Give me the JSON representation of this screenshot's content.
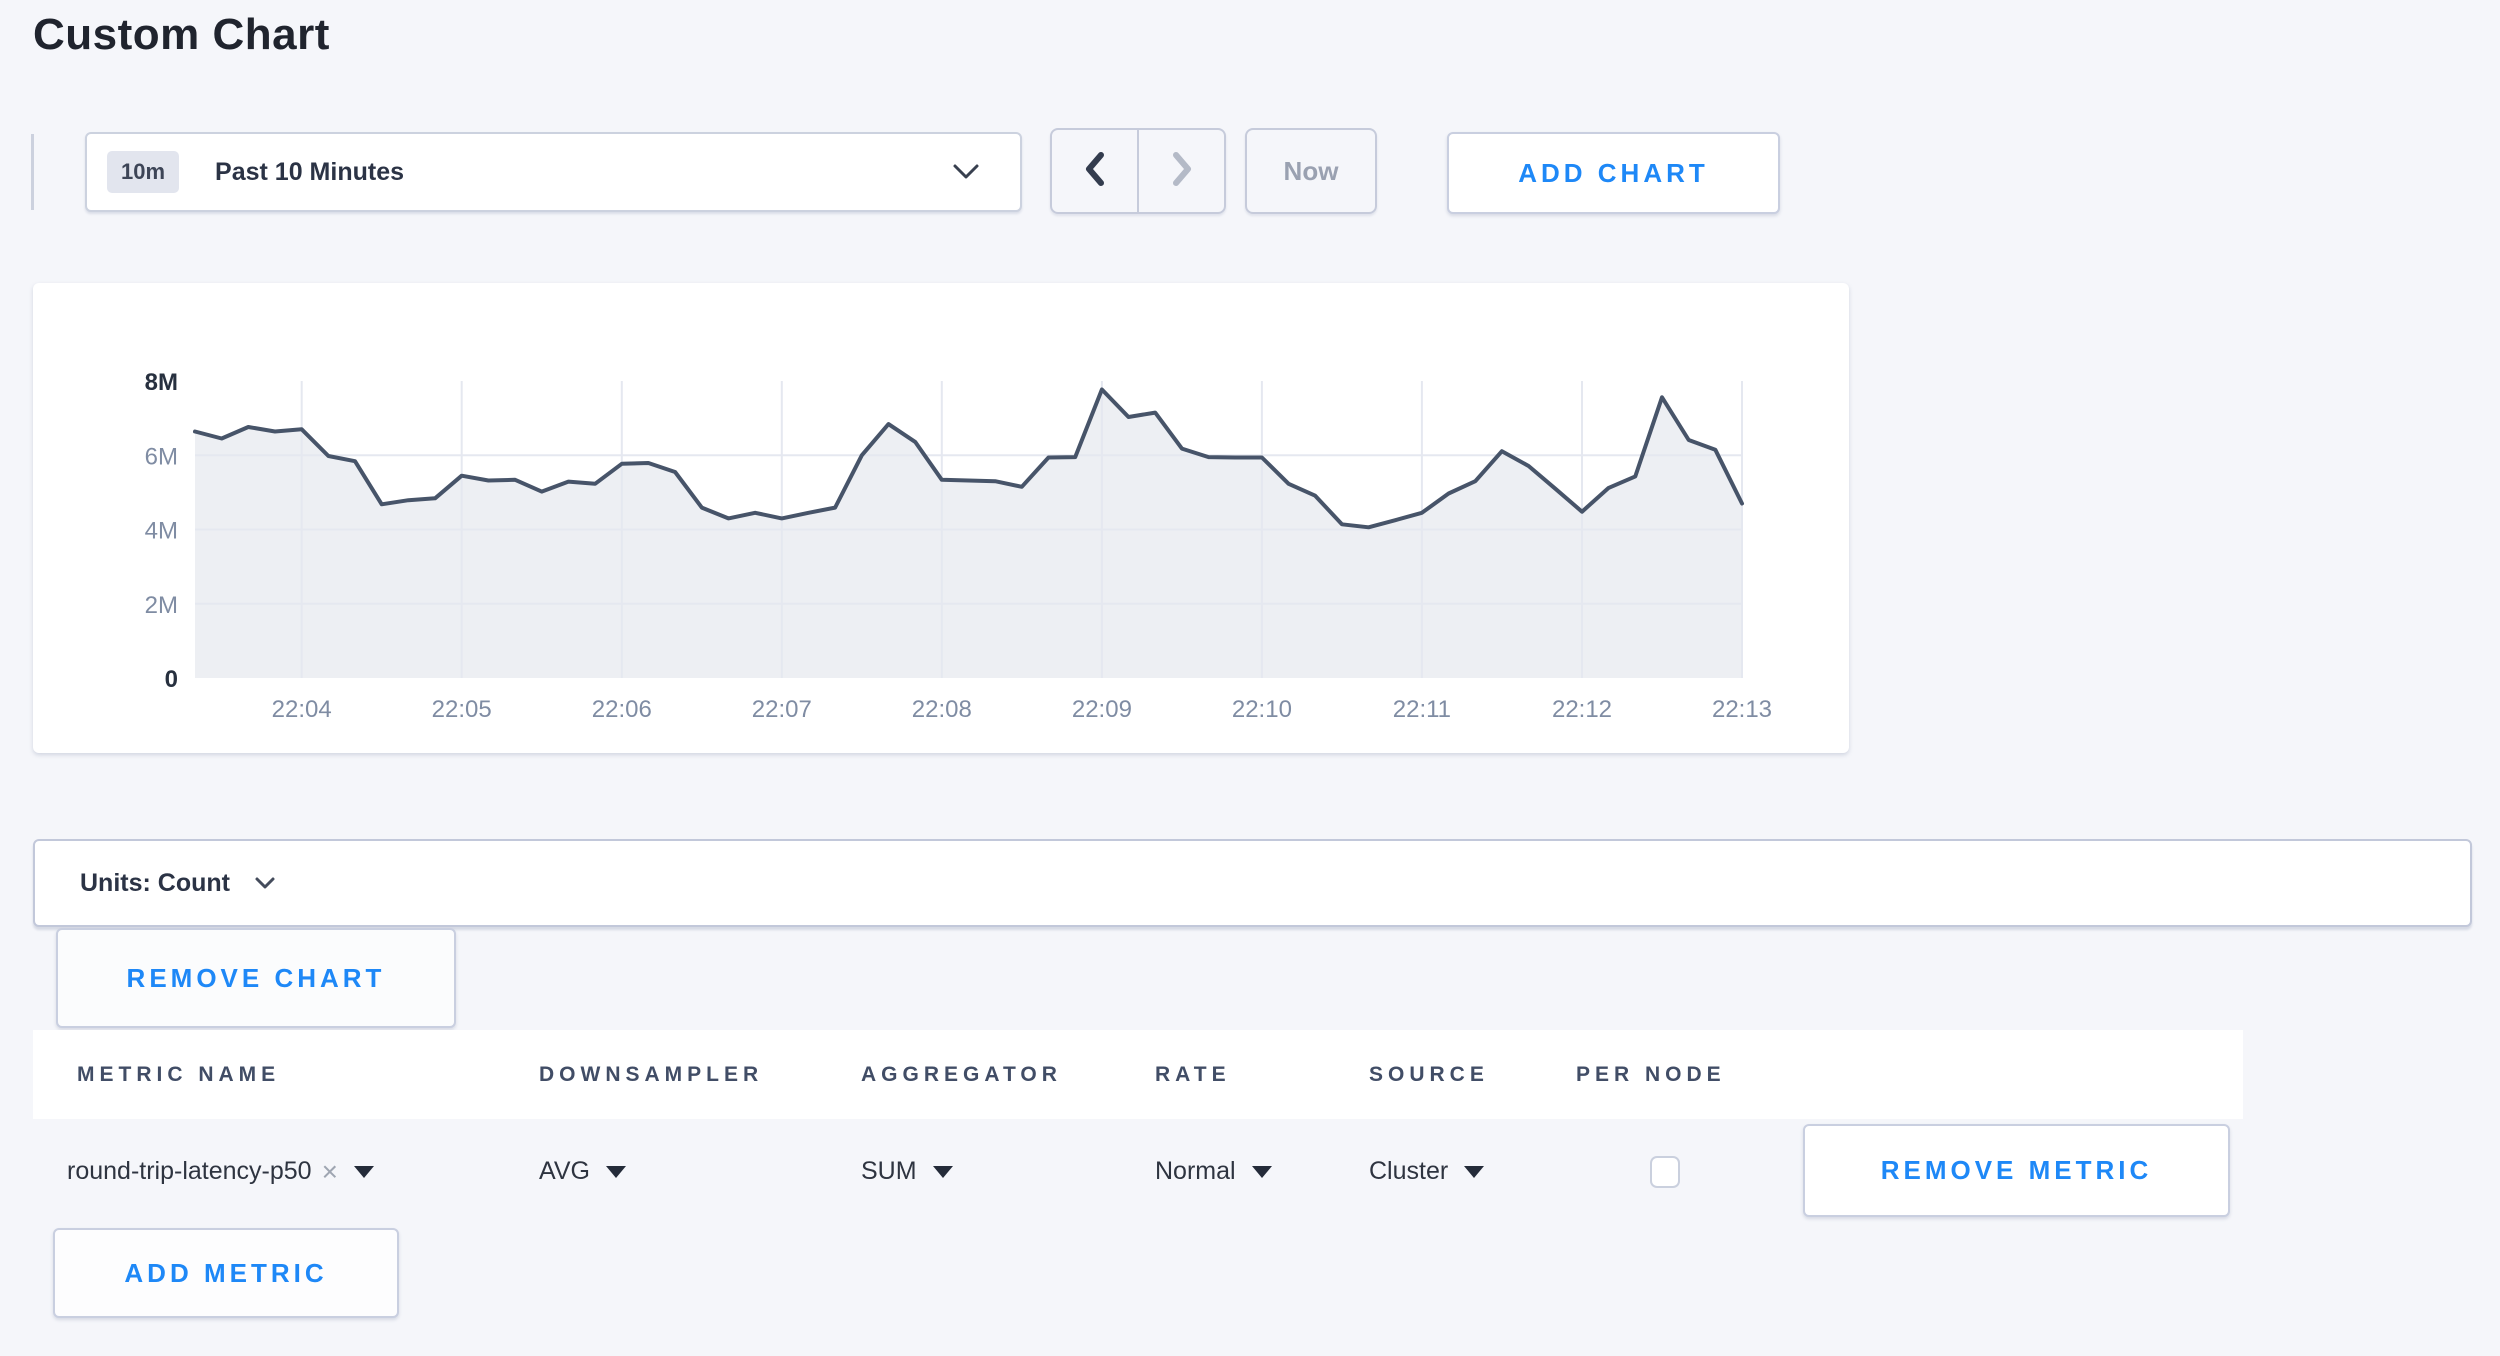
{
  "page": {
    "title": "Custom Chart"
  },
  "toolbar": {
    "timescale": {
      "badge": "10m",
      "label": "Past 10 Minutes"
    },
    "now_label": "Now",
    "add_chart_label": "ADD CHART"
  },
  "units_bar": {
    "label": "Units: Count"
  },
  "buttons": {
    "remove_chart_label": "REMOVE CHART",
    "remove_metric_label": "REMOVE METRIC",
    "add_metric_label": "ADD METRIC"
  },
  "icons": {
    "clear": "×"
  },
  "metrics_table": {
    "headers": [
      "METRIC NAME",
      "DOWNSAMPLER",
      "AGGREGATOR",
      "RATE",
      "SOURCE",
      "PER NODE"
    ],
    "rows": [
      {
        "metric_name": "round-trip-latency-p50",
        "downsampler": "AVG",
        "aggregator": "SUM",
        "rate": "Normal",
        "source": "Cluster",
        "per_node_checked": false
      }
    ]
  },
  "chart_data": {
    "type": "area",
    "title": "",
    "xlabel": "",
    "ylabel": "",
    "unit": "count (millions)",
    "ylim_millions": [
      0,
      8
    ],
    "y_ticks": [
      "0",
      "2M",
      "4M",
      "6M",
      "8M"
    ],
    "x_ticks": [
      "22:04",
      "22:05",
      "22:06",
      "22:07",
      "22:08",
      "22:09",
      "22:10",
      "22:11",
      "22:12",
      "22:13"
    ],
    "x_start_time": "22:03:20",
    "x_interval_seconds": 10,
    "tick_start_index": 4,
    "tick_step": 6,
    "grid": true,
    "legend": "none",
    "line_color": "#475469",
    "fill_color": "#edeff3",
    "values_millions": [
      6.64,
      6.45,
      6.76,
      6.64,
      6.7,
      5.98,
      5.84,
      4.68,
      4.79,
      4.84,
      5.45,
      5.32,
      5.34,
      5.02,
      5.29,
      5.23,
      5.77,
      5.79,
      5.55,
      4.59,
      4.3,
      4.45,
      4.3,
      4.45,
      4.59,
      6.0,
      6.84,
      6.36,
      5.34,
      5.32,
      5.3,
      5.15,
      5.94,
      5.95,
      7.77,
      7.03,
      7.15,
      6.18,
      5.95,
      5.94,
      5.94,
      5.23,
      4.91,
      4.14,
      4.06,
      4.25,
      4.45,
      4.97,
      5.3,
      6.11,
      5.71,
      5.1,
      4.48,
      5.12,
      5.43,
      7.56,
      6.41,
      6.15,
      4.7
    ]
  },
  "colors": {
    "accent_blue": "#1e88f7",
    "page_background": "#f5f6fa",
    "line": "#475469",
    "area_fill": "#edeff3",
    "gridline": "#e5e8f0"
  }
}
